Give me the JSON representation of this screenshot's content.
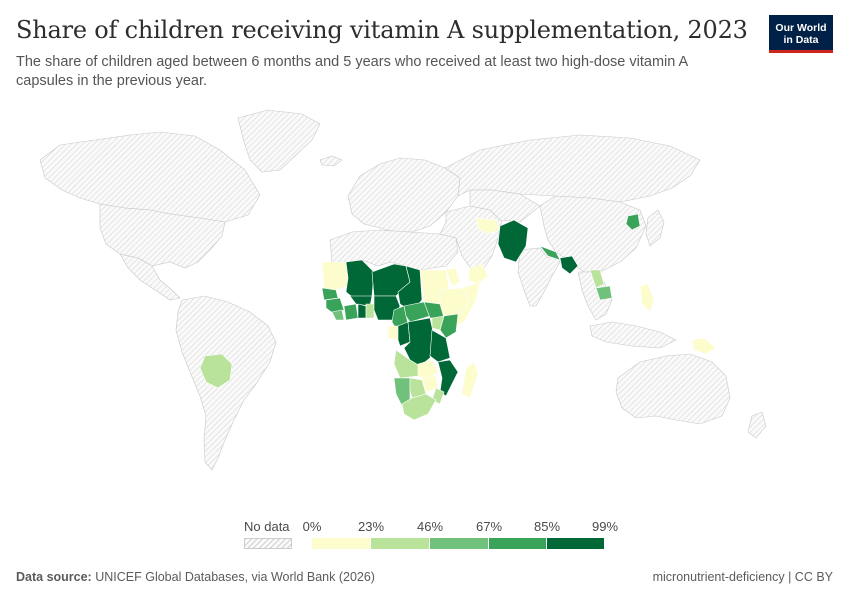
{
  "header": {
    "title": "Share of children receiving vitamin A supplementation, 2023",
    "subtitle": "The share of children aged between 6 months and 5 years who received at least two high-dose vitamin A capsules in the previous year."
  },
  "logo": {
    "line1": "Our World",
    "line2": "in Data",
    "bg_color": "#002147",
    "accent_color": "#ce261e"
  },
  "legend": {
    "no_data_label": "No data",
    "ticks": [
      "0%",
      "23%",
      "46%",
      "67%",
      "85%",
      "99%"
    ],
    "bins": [
      {
        "range": "0–23%",
        "color": "#fcfccc"
      },
      {
        "range": "23–46%",
        "color": "#b9e29a"
      },
      {
        "range": "46–67%",
        "color": "#70c17b"
      },
      {
        "range": "67–85%",
        "color": "#39a35a"
      },
      {
        "range": "85–99%",
        "color": "#006837"
      }
    ]
  },
  "map_data": {
    "year": 2023,
    "countries_by_bin": {
      "0–23%": [
        "Mauritania",
        "Sudan",
        "Guinea-Bissau",
        "Eritrea",
        "Ethiopia",
        "Somalia",
        "Gabon",
        "Zambia",
        "Zimbabwe",
        "Madagascar",
        "Yemen",
        "Oman",
        "Philippines",
        "Papua New Guinea"
      ],
      "23–46%": [
        "Bolivia",
        "Togo",
        "Benin",
        "Uganda",
        "Angola",
        "Botswana",
        "South Africa",
        "Mozambique",
        "Laos",
        "Afghanistan"
      ],
      "46–67%": [
        "Sierra Leone",
        "Liberia",
        "Namibia",
        "Cambodia"
      ],
      "67–85%": [
        "Senegal",
        "Gambia",
        "Guinea",
        "Ivory Coast",
        "Cameroon",
        "Central African Republic",
        "South Sudan",
        "Kenya",
        "Nepal",
        "North Korea"
      ],
      "85–99%": [
        "Mali",
        "Niger",
        "Chad",
        "Burkina Faso",
        "Ghana",
        "Nigeria",
        "Republic of the Congo",
        "DR Congo",
        "Tanzania",
        "Malawi",
        "Pakistan",
        "Bangladesh"
      ]
    },
    "no_data_style": "hatched"
  },
  "footer": {
    "source_label": "Data source:",
    "source_text": "UNICEF Global Databases, via World Bank (2026)",
    "slug": "micronutrient-deficiency | CC BY"
  }
}
